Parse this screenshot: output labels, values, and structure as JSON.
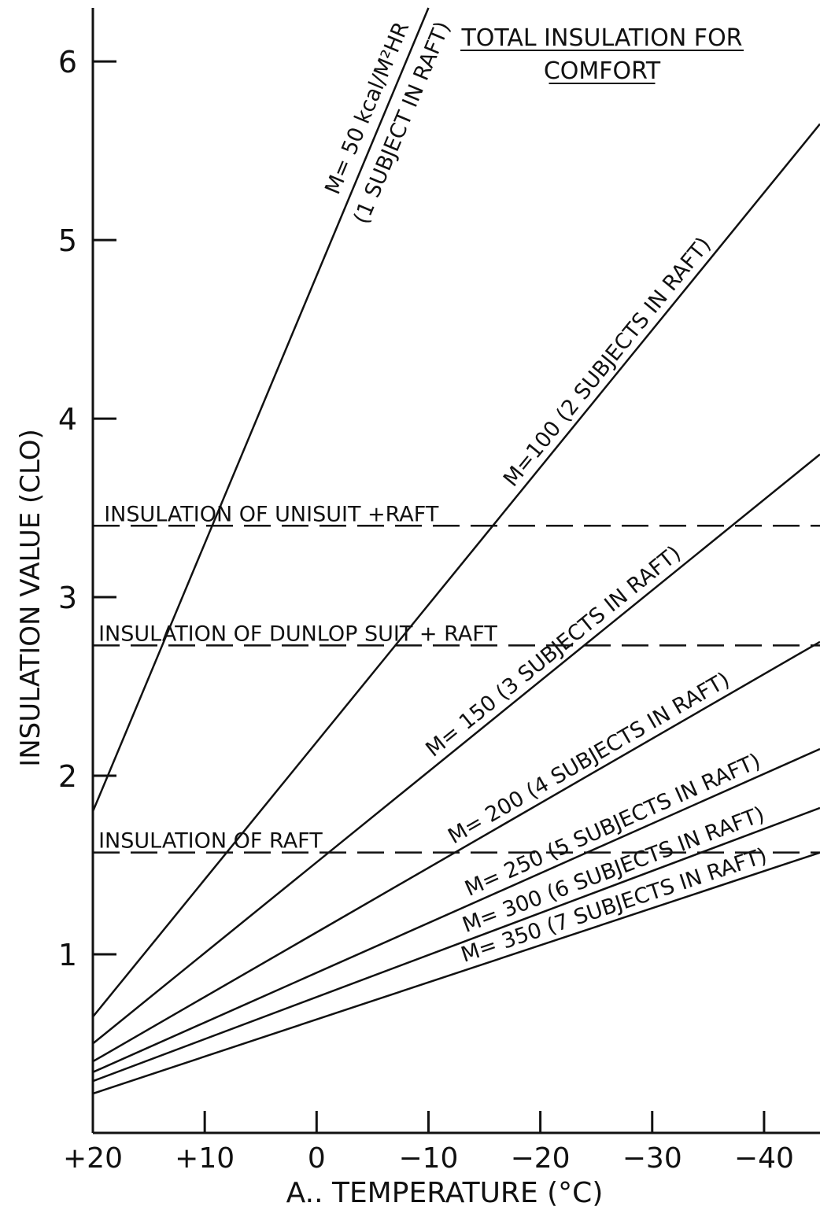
{
  "chart_data": {
    "type": "line",
    "title": "TOTAL INSULATION FOR COMFORT",
    "title_lines": [
      "TOTAL INSULATION FOR",
      "COMFORT"
    ],
    "xlabel": "A.. TEMPERATURE (°C)",
    "ylabel": "INSULATION VALUE (CLO)",
    "xlim": [
      20,
      -45
    ],
    "ylim": [
      0,
      6.3
    ],
    "x_ticks": [
      20,
      10,
      0,
      -10,
      -20,
      -30,
      -40
    ],
    "x_tick_labels": [
      "+20",
      "+10",
      "0",
      "−10",
      "−20",
      "−30",
      "−40"
    ],
    "y_ticks": [
      1,
      2,
      3,
      4,
      5,
      6
    ],
    "y_tick_labels": [
      "1",
      "2",
      "3",
      "4",
      "5",
      "6"
    ],
    "grid": false,
    "series": [
      {
        "name": "M= 50 kcal/M²HR (1 SUBJECT IN RAFT)",
        "label_lines": [
          "M= 50 kcal/M²HR",
          "(1 SUBJECT IN RAFT)"
        ],
        "label_x": -6,
        "x": [
          20,
          -10
        ],
        "y": [
          1.8,
          6.3
        ]
      },
      {
        "name": "M=100 (2 SUBJECTS IN RAFT)",
        "label_lines": [
          "M=100 (2 SUBJECTS IN RAFT)"
        ],
        "label_x": -27,
        "x": [
          20,
          -45
        ],
        "y": [
          0.65,
          5.65
        ]
      },
      {
        "name": "M= 150 (3 SUBJECTS IN RAFT)",
        "label_lines": [
          "M= 150 (3 SUBJECTS IN RAFT)"
        ],
        "label_x": -22,
        "x": [
          20,
          -45
        ],
        "y": [
          0.5,
          3.8
        ]
      },
      {
        "name": "M= 200 (4 SUBJECTS IN RAFT)",
        "label_lines": [
          "M= 200 (4 SUBJECTS IN RAFT)"
        ],
        "label_x": -25,
        "x": [
          20,
          -45
        ],
        "y": [
          0.4,
          2.75
        ]
      },
      {
        "name": "M= 250 (5 SUBJECTS IN RAFT)",
        "label_lines": [
          "M= 250 (5 SUBJECTS IN RAFT)"
        ],
        "label_x": -27,
        "x": [
          20,
          -45
        ],
        "y": [
          0.34,
          2.15
        ]
      },
      {
        "name": "M= 300 (6 SUBJECTS IN RAFT)",
        "label_lines": [
          "M= 300 (6 SUBJECTS IN RAFT)"
        ],
        "label_x": -27,
        "x": [
          20,
          -45
        ],
        "y": [
          0.29,
          1.82
        ]
      },
      {
        "name": "M= 350 (7 SUBJECTS IN RAFT)",
        "label_lines": [
          "M= 350 (7 SUBJECTS IN RAFT)"
        ],
        "label_x": -27,
        "x": [
          20,
          -45
        ],
        "y": [
          0.22,
          1.57
        ]
      }
    ],
    "reference_lines": [
      {
        "label": "INSULATION OF UNISUIT +RAFT",
        "y": 3.4,
        "label_x": 19,
        "style": "dashed"
      },
      {
        "label": "INSULATION OF DUNLOP SUIT + RAFT",
        "y": 2.73,
        "label_x": 19.5,
        "style": "dashed"
      },
      {
        "label": "INSULATION OF RAFT",
        "y": 1.57,
        "label_x": 19.5,
        "style": "dashed"
      }
    ]
  }
}
